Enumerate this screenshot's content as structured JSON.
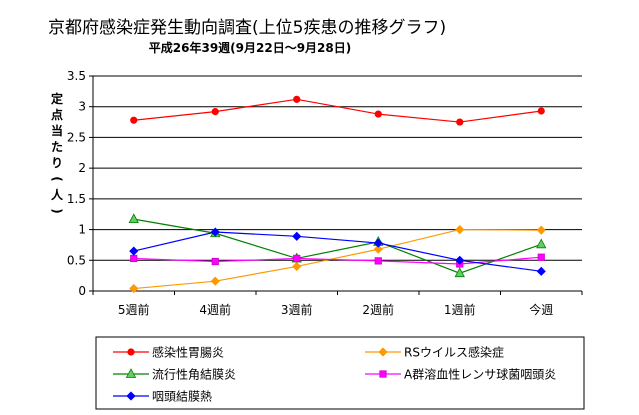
{
  "chart_data": {
    "type": "line",
    "title": "京都府感染症発生動向調査(上位5疾患の推移グラフ)",
    "subtitle": "平成26年39週(9月22日～9月28日)",
    "ylabel": "定点当たり(人)",
    "xlabel": "",
    "categories": [
      "5週前",
      "4週前",
      "3週前",
      "2週前",
      "1週前",
      "今週"
    ],
    "y_ticks": [
      "0",
      "0.5",
      "1",
      "1.5",
      "2",
      "2.5",
      "3",
      "3.5"
    ],
    "ylim": [
      0,
      3.5
    ],
    "grid": "horizontal",
    "legend_position": "bottom",
    "series": [
      {
        "name": "感染性胃腸炎",
        "color": "#ff0000",
        "marker": "circle",
        "marker_fill": "#ff0000",
        "values": [
          2.78,
          2.92,
          3.12,
          2.88,
          2.75,
          2.93
        ]
      },
      {
        "name": "RSウイルス感染症",
        "color": "#ff9900",
        "marker": "diamond",
        "marker_fill": "#ff9900",
        "values": [
          0.04,
          0.16,
          0.4,
          0.68,
          1.0,
          0.99
        ]
      },
      {
        "name": "流行性角結膜炎",
        "color": "#008000",
        "marker": "triangle",
        "marker_fill": "#66cc66",
        "values": [
          1.17,
          0.94,
          0.53,
          0.8,
          0.29,
          0.76
        ]
      },
      {
        "name": "A群溶血性レンサ球菌咽頭炎",
        "color": "#ff00ff",
        "marker": "square",
        "marker_fill": "#ff00ff",
        "values": [
          0.53,
          0.48,
          0.53,
          0.49,
          0.44,
          0.55
        ]
      },
      {
        "name": "咽頭結膜熱",
        "color": "#0000ff",
        "marker": "diamond",
        "marker_fill": "#0000ff",
        "values": [
          0.65,
          0.96,
          0.89,
          0.78,
          0.5,
          0.32
        ]
      }
    ]
  }
}
